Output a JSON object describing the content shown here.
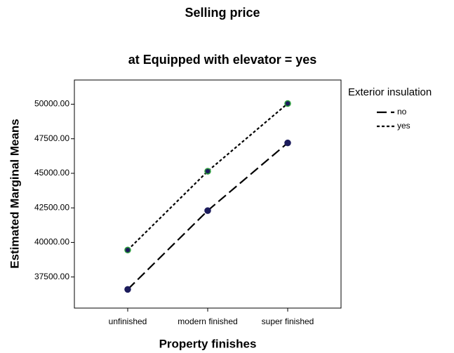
{
  "chart_data": {
    "type": "line",
    "title": "Selling price",
    "subtitle": "at Equipped with elevator = yes",
    "xlabel": "Property finishes",
    "ylabel": "Estimated Marginal Means",
    "legend_title": "Exterior insulation",
    "legend": "right",
    "categories": [
      "unfinished",
      "modern finished",
      "super finished"
    ],
    "series": [
      {
        "name": "no",
        "color": "#000000",
        "dash": "14,6",
        "marker_fill": "#1c1c5c",
        "marker_edge": "#1c1c5c",
        "values": [
          36600,
          42300,
          47200
        ]
      },
      {
        "name": "yes",
        "color": "#000000",
        "dash": "4,3",
        "marker_fill": "#1c1c5c",
        "marker_edge": "#2e9e3e",
        "values": [
          39450,
          45150,
          50050
        ]
      }
    ],
    "ylim": [
      35250,
      51750
    ],
    "yticks": [
      {
        "value": 37500,
        "label": "37500.00"
      },
      {
        "value": 40000,
        "label": "40000.00"
      },
      {
        "value": 42500,
        "label": "42500.00"
      },
      {
        "value": 45000,
        "label": "45000.00"
      },
      {
        "value": 47500,
        "label": "47500.00"
      },
      {
        "value": 50000,
        "label": "50000.00"
      }
    ],
    "grid": false
  }
}
